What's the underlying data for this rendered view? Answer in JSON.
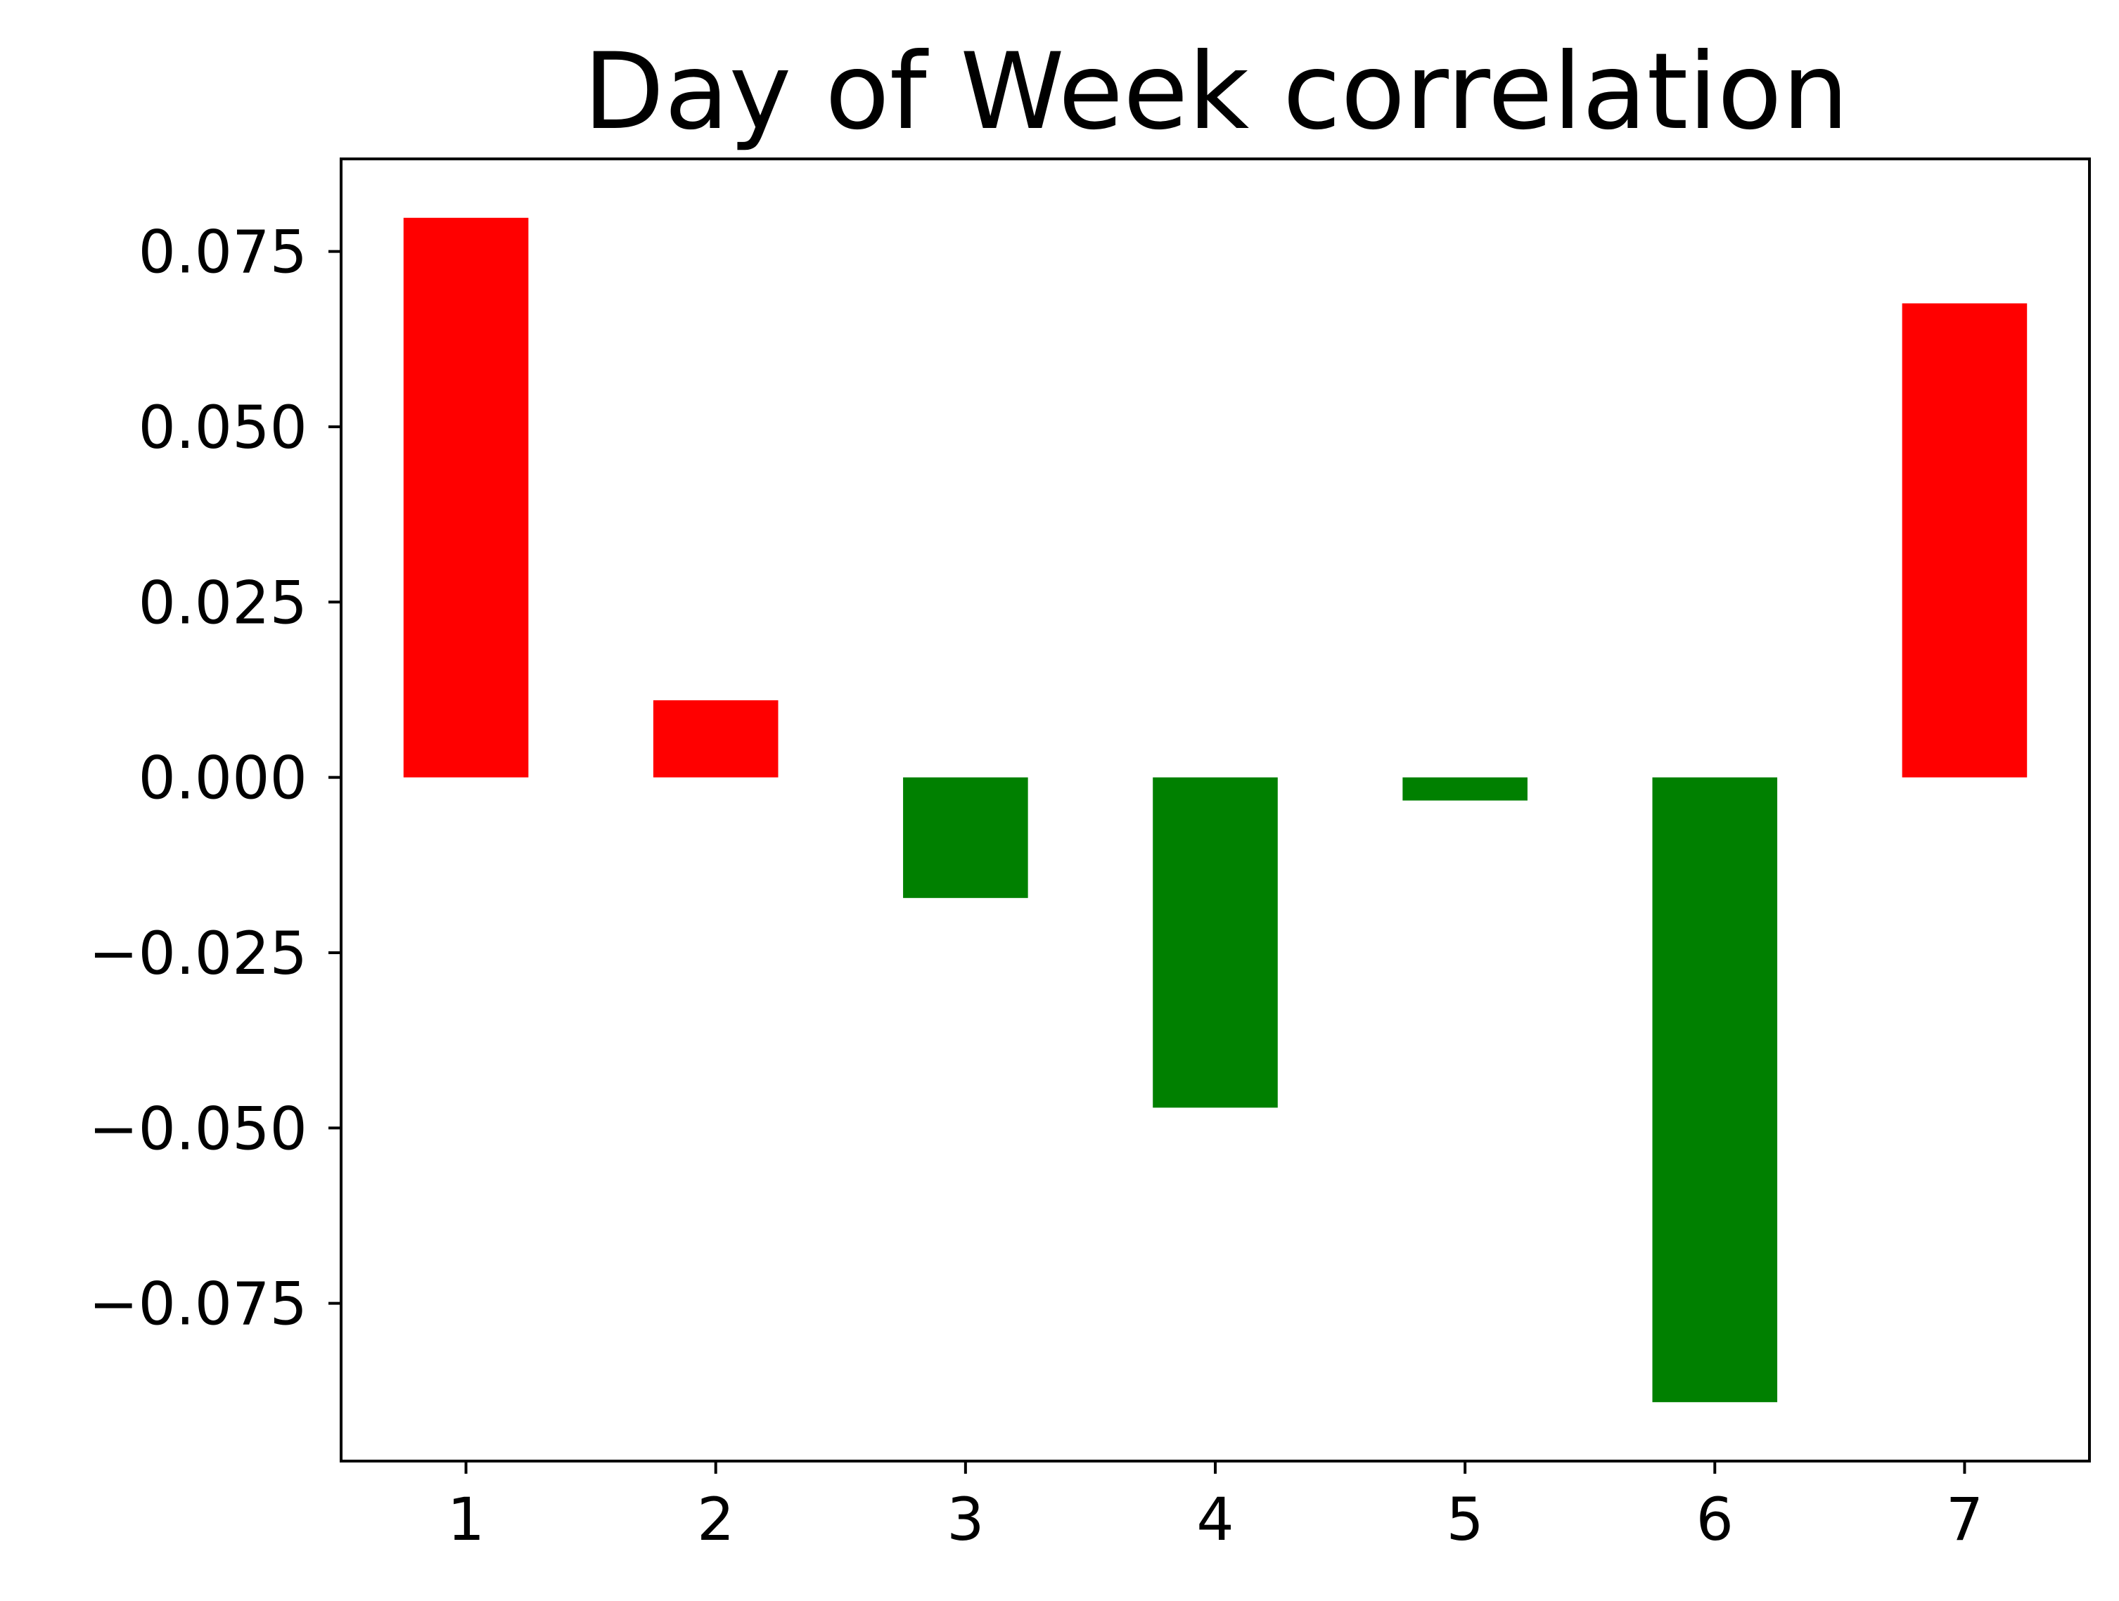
{
  "chart_data": {
    "type": "bar",
    "title": "Day of Week correlation",
    "xlabel": "",
    "ylabel": "",
    "categories": [
      "1",
      "2",
      "3",
      "4",
      "5",
      "6",
      "7"
    ],
    "values": [
      0.0798,
      0.011,
      -0.0172,
      -0.0471,
      -0.0033,
      -0.0891,
      0.0676
    ],
    "ylim": [
      -0.0975,
      0.0882
    ],
    "yticks": [
      -0.075,
      -0.05,
      -0.025,
      0.0,
      0.025,
      0.05,
      0.075
    ],
    "ytick_labels": [
      "−0.075",
      "−0.050",
      "−0.025",
      "0.000",
      "0.025",
      "0.050",
      "0.075"
    ],
    "grid": false,
    "legend": "none",
    "colors": {
      "positive": "#ff0000",
      "negative": "#008000",
      "axis": "#000000",
      "background": "#ffffff"
    }
  }
}
